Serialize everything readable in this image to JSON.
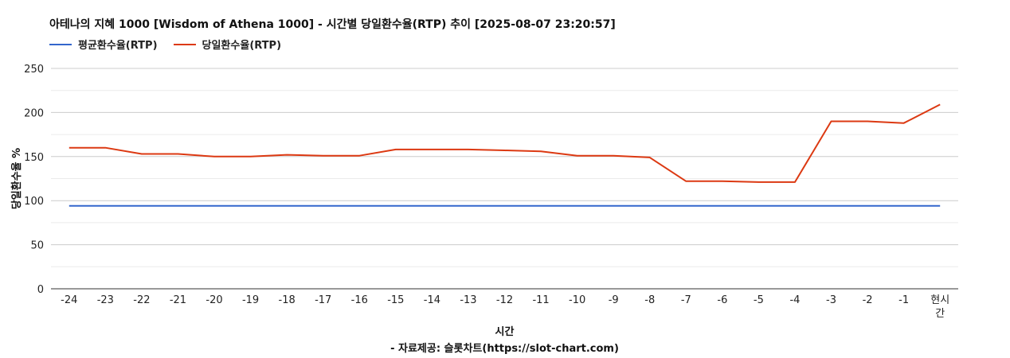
{
  "chart_data": {
    "type": "line",
    "title": "아테나의 지혜 1000 [Wisdom of Athena 1000] - 시간별 당일환수율(RTP) 추이 [2025-08-07 23:20:57]",
    "xlabel": "시간",
    "xlabel_sub": "- 자료제공: 슬롯차트(https://slot-chart.com)",
    "ylabel": "당일환수율 %",
    "ylim": [
      0,
      250
    ],
    "yticks": [
      0,
      50,
      100,
      150,
      200,
      250
    ],
    "grid": true,
    "legend_position": "top-left",
    "categories": [
      "-24",
      "-23",
      "-22",
      "-21",
      "-20",
      "-19",
      "-18",
      "-17",
      "-16",
      "-15",
      "-14",
      "-13",
      "-12",
      "-11",
      "-10",
      "-9",
      "-8",
      "-7",
      "-6",
      "-5",
      "-4",
      "-3",
      "-2",
      "-1",
      "현시간"
    ],
    "series": [
      {
        "name": "평균환수율(RTP)",
        "color": "#3366cc",
        "values": [
          94,
          94,
          94,
          94,
          94,
          94,
          94,
          94,
          94,
          94,
          94,
          94,
          94,
          94,
          94,
          94,
          94,
          94,
          94,
          94,
          94,
          94,
          94,
          94,
          94
        ]
      },
      {
        "name": "당일환수율(RTP)",
        "color": "#dc3912",
        "values": [
          160,
          160,
          153,
          153,
          150,
          150,
          152,
          151,
          151,
          158,
          158,
          158,
          157,
          156,
          151,
          151,
          149,
          122,
          122,
          121,
          121,
          190,
          190,
          188,
          209
        ]
      }
    ]
  }
}
